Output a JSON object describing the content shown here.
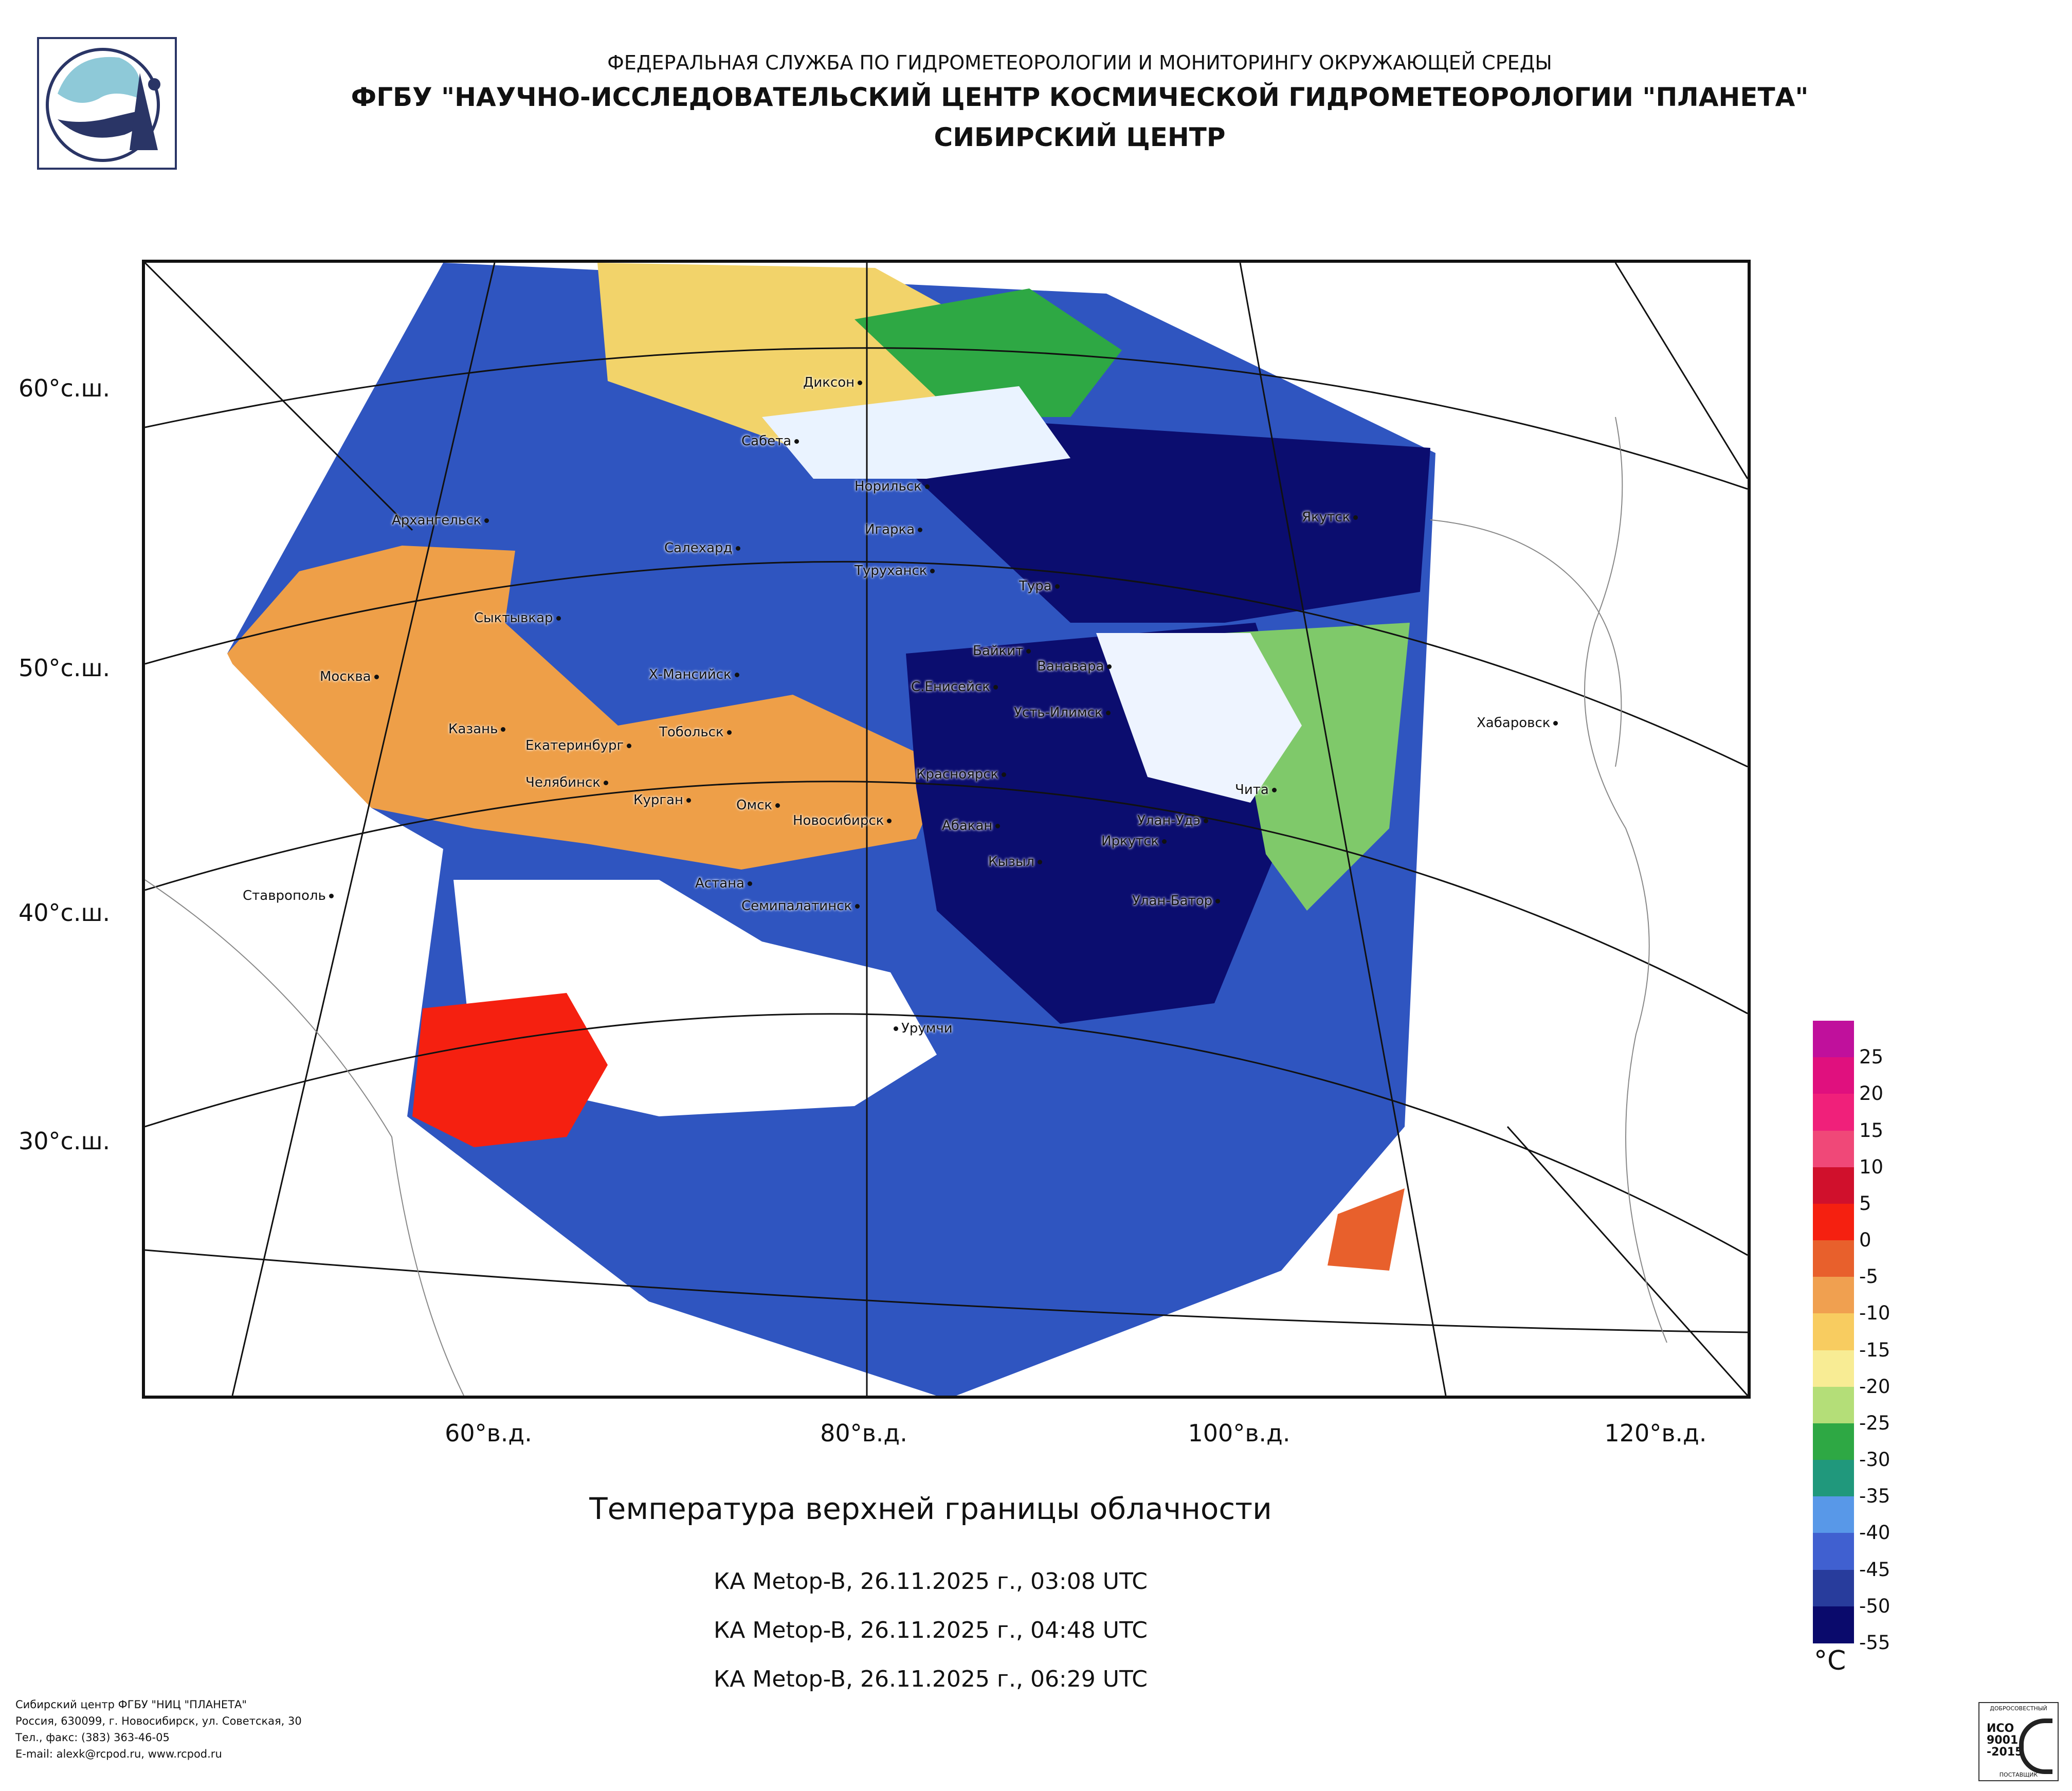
{
  "header": {
    "agency": "ФЕДЕРАЛЬНАЯ СЛУЖБА ПО ГИДРОМЕТЕОРОЛОГИИ И МОНИТОРИНГУ ОКРУЖАЮЩЕЙ СРЕДЫ",
    "institute": "ФГБУ \"НАУЧНО-ИССЛЕДОВАТЕЛЬСКИЙ ЦЕНТР КОСМИЧЕСКОЙ ГИДРОМЕТЕОРОЛОГИИ \"ПЛАНЕТА\"",
    "center": "СИБИРСКИЙ ЦЕНТР"
  },
  "map": {
    "latitude_labels": [
      "60°с.ш.",
      "50°с.ш.",
      "40°с.ш.",
      "30°с.ш."
    ],
    "longitude_labels": [
      "60°в.д.",
      "80°в.д.",
      "100°в.д.",
      "120°в.д."
    ],
    "cities": [
      "Диксон",
      "Сабета",
      "Норильск",
      "Якутск",
      "Архангельск",
      "Салехард",
      "Игарка",
      "Туруханск",
      "Тура",
      "Сыктывкар",
      "Байкит",
      "Ванавара",
      "Х-Мансийск",
      "С.Енисейск",
      "Москва",
      "Усть-Илимск",
      "Хабаровск",
      "Казань",
      "Тобольск",
      "Екатеринбург",
      "Красноярск",
      "Челябинск",
      "Курган",
      "Омск",
      "Чита",
      "Новосибирск",
      "Абакан",
      "Улан-Удэ",
      "Иркутск",
      "Кызыл",
      "Астана",
      "Ставрополь",
      "Семипалатинск",
      "Улан-Батор",
      "Урумчи"
    ]
  },
  "product": {
    "title": "Температура верхней границы облачности",
    "passes": [
      "КА Metop-B, 26.11.2025 г., 03:08 UTC",
      "КА Metop-B, 26.11.2025 г., 04:48 UTC",
      "КА Metop-B, 26.11.2025 г., 06:29 UTC"
    ]
  },
  "legend": {
    "unit": "°C",
    "labels": [
      "25",
      "20",
      "15",
      "10",
      "5",
      "0",
      "-5",
      "-10",
      "-15",
      "-20",
      "-25",
      "-30",
      "-35",
      "-40",
      "-45",
      "-50",
      "-55"
    ],
    "colors": [
      "#c0109c",
      "#e0107e",
      "#f0207a",
      "#f04878",
      "#d0102c",
      "#f52010",
      "#e8602c",
      "#f0a050",
      "#f8cc60",
      "#f8ec94",
      "#b4de78",
      "#2ea844",
      "#20987c",
      "#5898e8",
      "#4060d0",
      "#283c9c",
      "#0a0a6c"
    ]
  },
  "footer": {
    "lines": [
      "Сибирский центр ФГБУ \"НИЦ \"ПЛАНЕТА\"",
      "Россия, 630099, г. Новосибирск, ул. Советская, 30",
      "Тел., факс: (383) 363-46-05",
      "E-mail: alexk@rcpod.ru, www.rcpod.ru"
    ]
  },
  "certificate": {
    "top": "ДОБРОСОВЕСТНЫЙ",
    "line1": "ИСО",
    "line2": "9001",
    "line3": "-2015",
    "bottom": "ПОСТАВЩИК"
  }
}
